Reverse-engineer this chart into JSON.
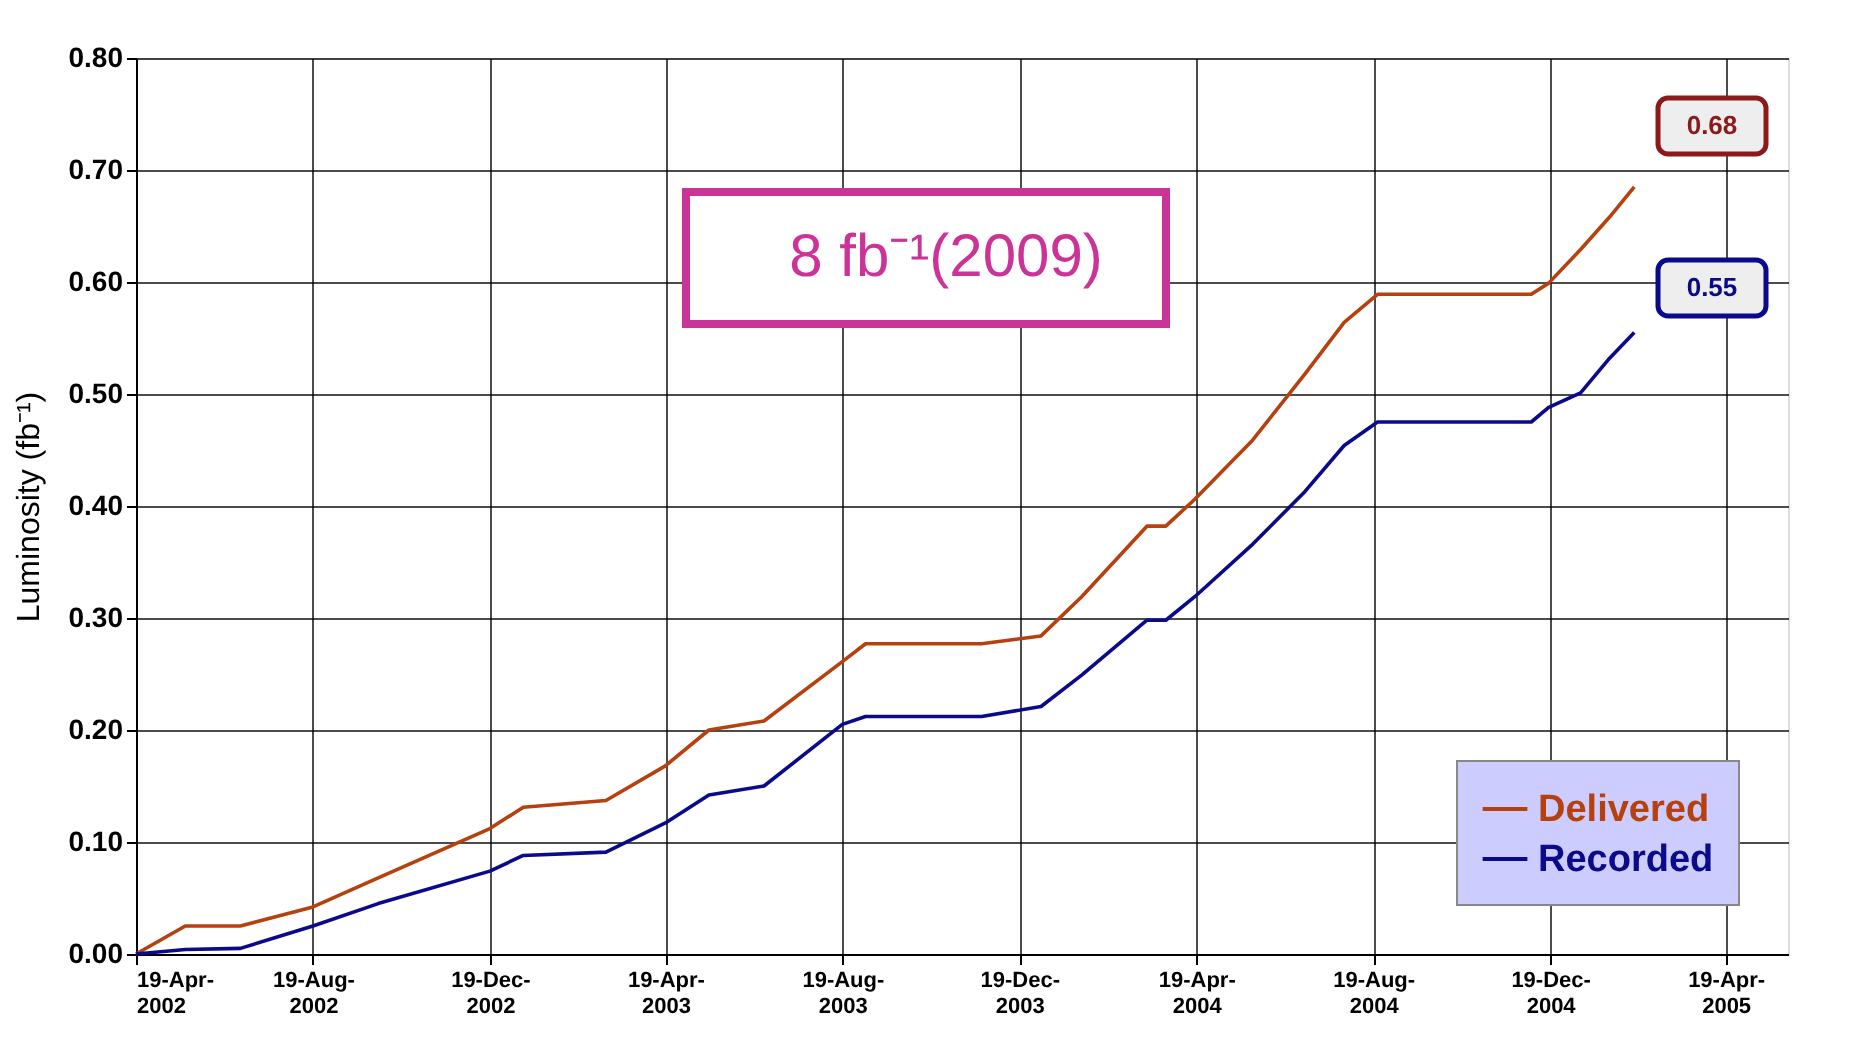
{
  "chart_data": {
    "type": "line",
    "ylabel": "Luminosity (fb⁻¹)",
    "x": [
      "2002-04-19",
      "2002-05-23",
      "2002-06-30",
      "2002-08-19",
      "2002-10-03",
      "2002-12-19",
      "2003-01-11",
      "2003-03-09",
      "2003-04-19",
      "2003-05-19",
      "2003-06-26",
      "2003-08-19",
      "2003-09-04",
      "2003-11-23",
      "2004-01-03",
      "2004-01-31",
      "2004-03-16",
      "2004-03-29",
      "2004-04-18",
      "2004-05-28",
      "2004-07-03",
      "2004-07-30",
      "2004-08-22",
      "2004-12-06",
      "2004-12-18",
      "2005-01-09",
      "2005-01-29",
      "2005-02-15"
    ],
    "series": [
      {
        "name": "Delivered",
        "color": "#b5410f",
        "values": [
          0,
          0.025,
          0.025,
          0.042,
          0.068,
          0.112,
          0.131,
          0.137,
          0.168,
          0.2,
          0.208,
          0.261,
          0.277,
          0.277,
          0.284,
          0.319,
          0.382,
          0.382,
          0.406,
          0.459,
          0.518,
          0.564,
          0.589,
          0.589,
          0.599,
          0.629,
          0.658,
          0.685
        ]
      },
      {
        "name": "Recorded",
        "color": "#0a0a8a",
        "values": [
          0,
          0.004,
          0.005,
          0.025,
          0.045,
          0.074,
          0.088,
          0.091,
          0.117,
          0.142,
          0.15,
          0.205,
          0.212,
          0.212,
          0.221,
          0.249,
          0.298,
          0.298,
          0.319,
          0.366,
          0.413,
          0.454,
          0.475,
          0.475,
          0.488,
          0.501,
          0.532,
          0.555
        ]
      }
    ],
    "xlim": [
      "2002-04-19",
      "2005-06-01"
    ],
    "xticks": [
      {
        "value": "2002-04-19",
        "label": "19-Apr-\n2002"
      },
      {
        "value": "2002-08-19",
        "label": "19-Aug-\n2002"
      },
      {
        "value": "2002-12-19",
        "label": "19-Dec-\n2002"
      },
      {
        "value": "2003-04-19",
        "label": "19-Apr-\n2003"
      },
      {
        "value": "2003-08-19",
        "label": "19-Aug-\n2003"
      },
      {
        "value": "2003-12-19",
        "label": "19-Dec-\n2003"
      },
      {
        "value": "2004-04-19",
        "label": "19-Apr-\n2004"
      },
      {
        "value": "2004-08-19",
        "label": "19-Aug-\n2004"
      },
      {
        "value": "2004-12-19",
        "label": "19-Dec-\n2004"
      },
      {
        "value": "2005-04-19",
        "label": "19-Apr-\n2005"
      }
    ],
    "ylim": [
      0,
      0.8
    ],
    "yticks": [
      {
        "value": 0,
        "label": "0.00"
      },
      {
        "value": 0.1,
        "label": "0.10"
      },
      {
        "value": 0.2,
        "label": "0.20"
      },
      {
        "value": 0.3,
        "label": "0.30"
      },
      {
        "value": 0.4,
        "label": "0.40"
      },
      {
        "value": 0.5,
        "label": "0.50"
      },
      {
        "value": 0.6,
        "label": "0.60"
      },
      {
        "value": 0.7,
        "label": "0.70"
      },
      {
        "value": 0.8,
        "label": "0.80"
      }
    ],
    "grid": true,
    "legend": "bottom right",
    "marker": "none",
    "line_style": "solid",
    "annotations": [
      "8 fb⁻¹(2009)",
      "0.68",
      "0.55"
    ]
  }
}
